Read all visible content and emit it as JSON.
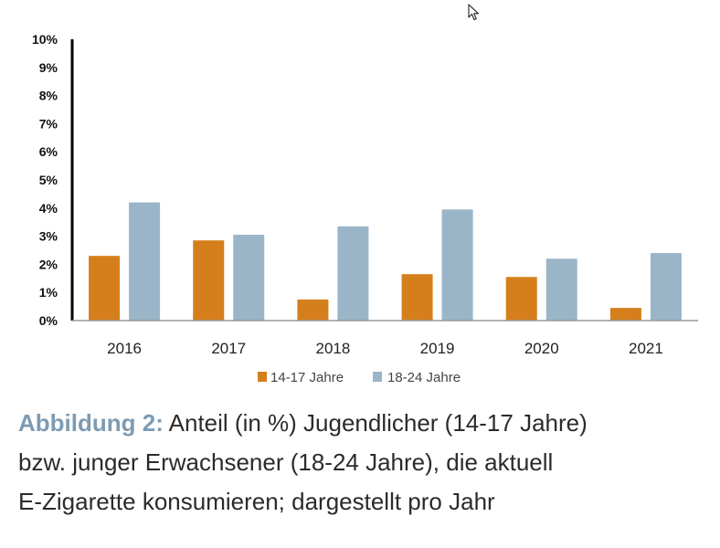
{
  "chart_data": {
    "type": "bar",
    "categories": [
      "2016",
      "2017",
      "2018",
      "2019",
      "2020",
      "2021"
    ],
    "series": [
      {
        "name": "14-17 Jahre",
        "color": "#d47f1c",
        "values": [
          2.3,
          2.85,
          0.75,
          1.65,
          1.55,
          0.45
        ]
      },
      {
        "name": "18-24 Jahre",
        "color": "#9ab5c8",
        "values": [
          4.2,
          3.05,
          3.35,
          3.95,
          2.2,
          2.4
        ]
      }
    ],
    "ylim": [
      0,
      10
    ],
    "yticks": [
      "0%",
      "1%",
      "2%",
      "3%",
      "4%",
      "5%",
      "6%",
      "7%",
      "8%",
      "9%",
      "10%"
    ],
    "legend_position": "bottom",
    "grid": false
  },
  "caption": {
    "label": "Abbildung 2:",
    "line1": " Anteil (in %) Jugendlicher (14-17 Jahre)",
    "line2": "bzw. junger Erwachsener (18-24 Jahre), die aktuell",
    "line3": "E-Zigarette konsumieren; dargestellt pro Jahr"
  },
  "icons": {
    "cursor": "mouse-pointer-icon"
  }
}
